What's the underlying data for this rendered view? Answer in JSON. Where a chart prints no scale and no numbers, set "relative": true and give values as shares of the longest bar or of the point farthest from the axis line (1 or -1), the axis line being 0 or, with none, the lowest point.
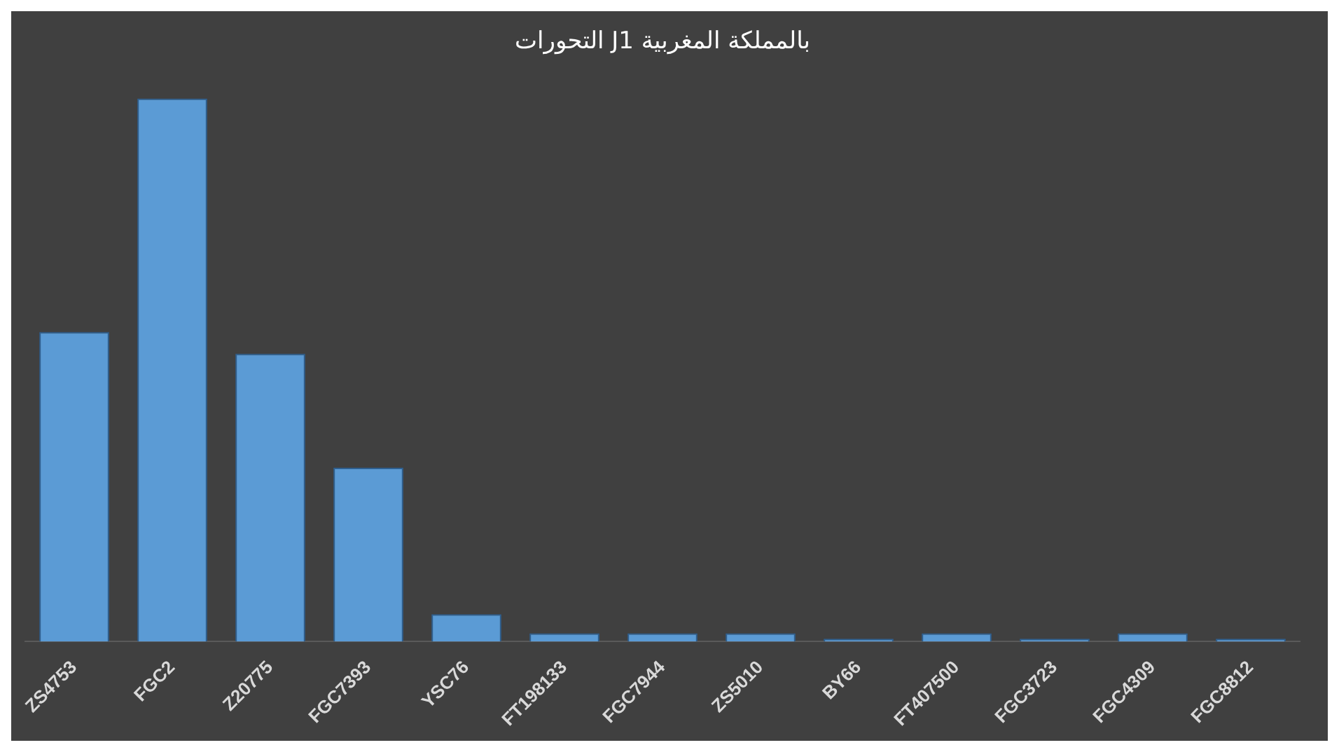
{
  "chart_data": {
    "type": "bar",
    "title": "التحورات J1 بالمملكة المغربية",
    "relative": true,
    "categories": [
      "ZS4753",
      "FGC2",
      "Z20775",
      "FGC7393",
      "YSC76",
      "FT198133",
      "FGC7944",
      "ZS5010",
      "BY66",
      "FT407500",
      "FGC3723",
      "FGC4309",
      "FGC8812"
    ],
    "values": [
      0.57,
      1,
      0.53,
      0.32,
      0.05,
      0.015,
      0.015,
      0.015,
      0.005,
      0.015,
      0.005,
      0.015,
      0.005
    ],
    "color": "#5b9bd5"
  }
}
